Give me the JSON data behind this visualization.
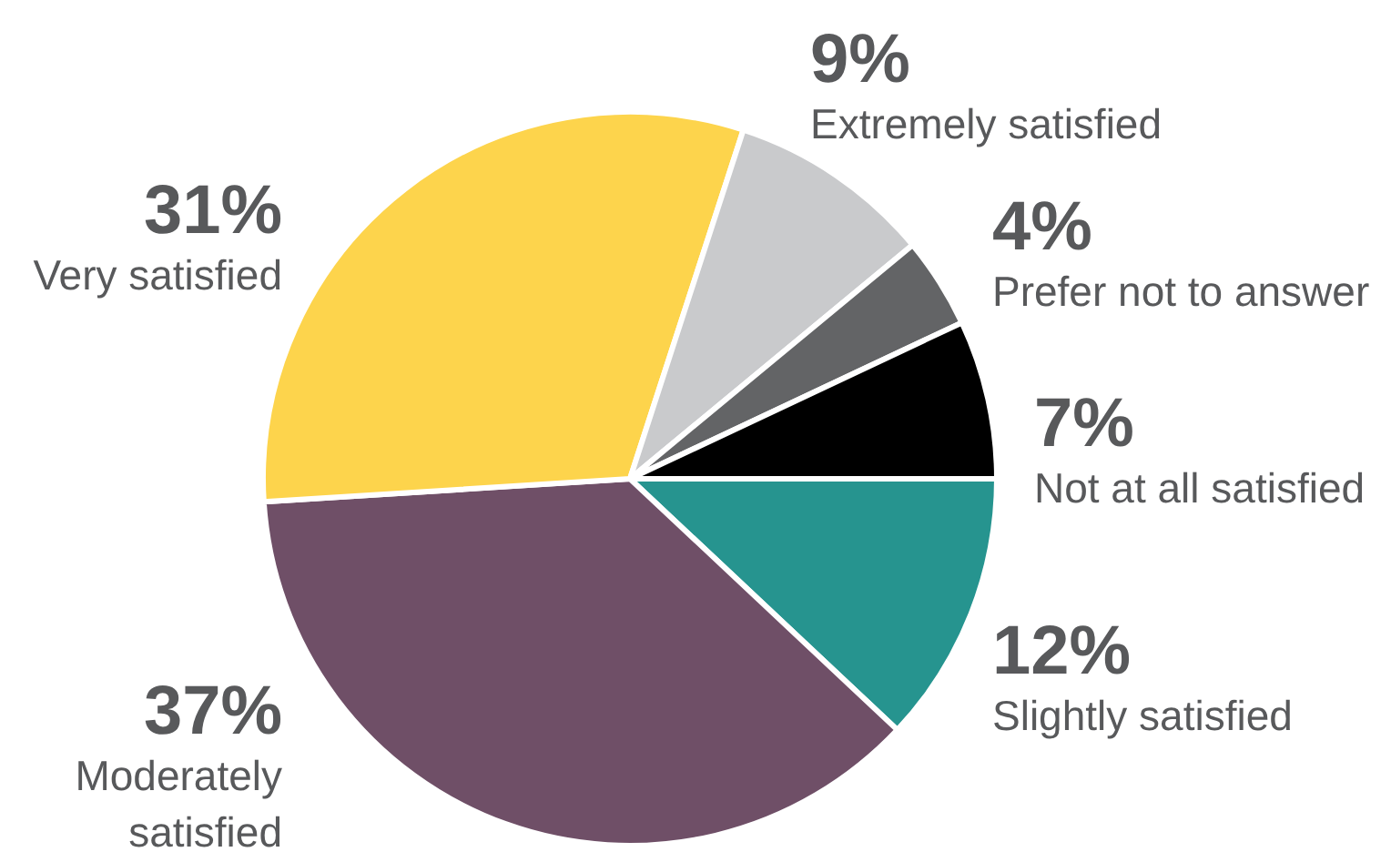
{
  "chart_data": {
    "type": "pie",
    "categories": [
      "Slightly satisfied",
      "Moderately satisfied",
      "Very satisfied",
      "Extremely satisfied",
      "Prefer not to answer",
      "Not at all satisfied"
    ],
    "values": [
      12,
      37,
      31,
      9,
      4,
      7
    ],
    "colors": [
      "#26948f",
      "#6f4f67",
      "#fdd44c",
      "#c9cacc",
      "#636466",
      "#000000"
    ],
    "value_labels": [
      "12%",
      "37%",
      "31%",
      "9%",
      "4%",
      "7%"
    ]
  }
}
